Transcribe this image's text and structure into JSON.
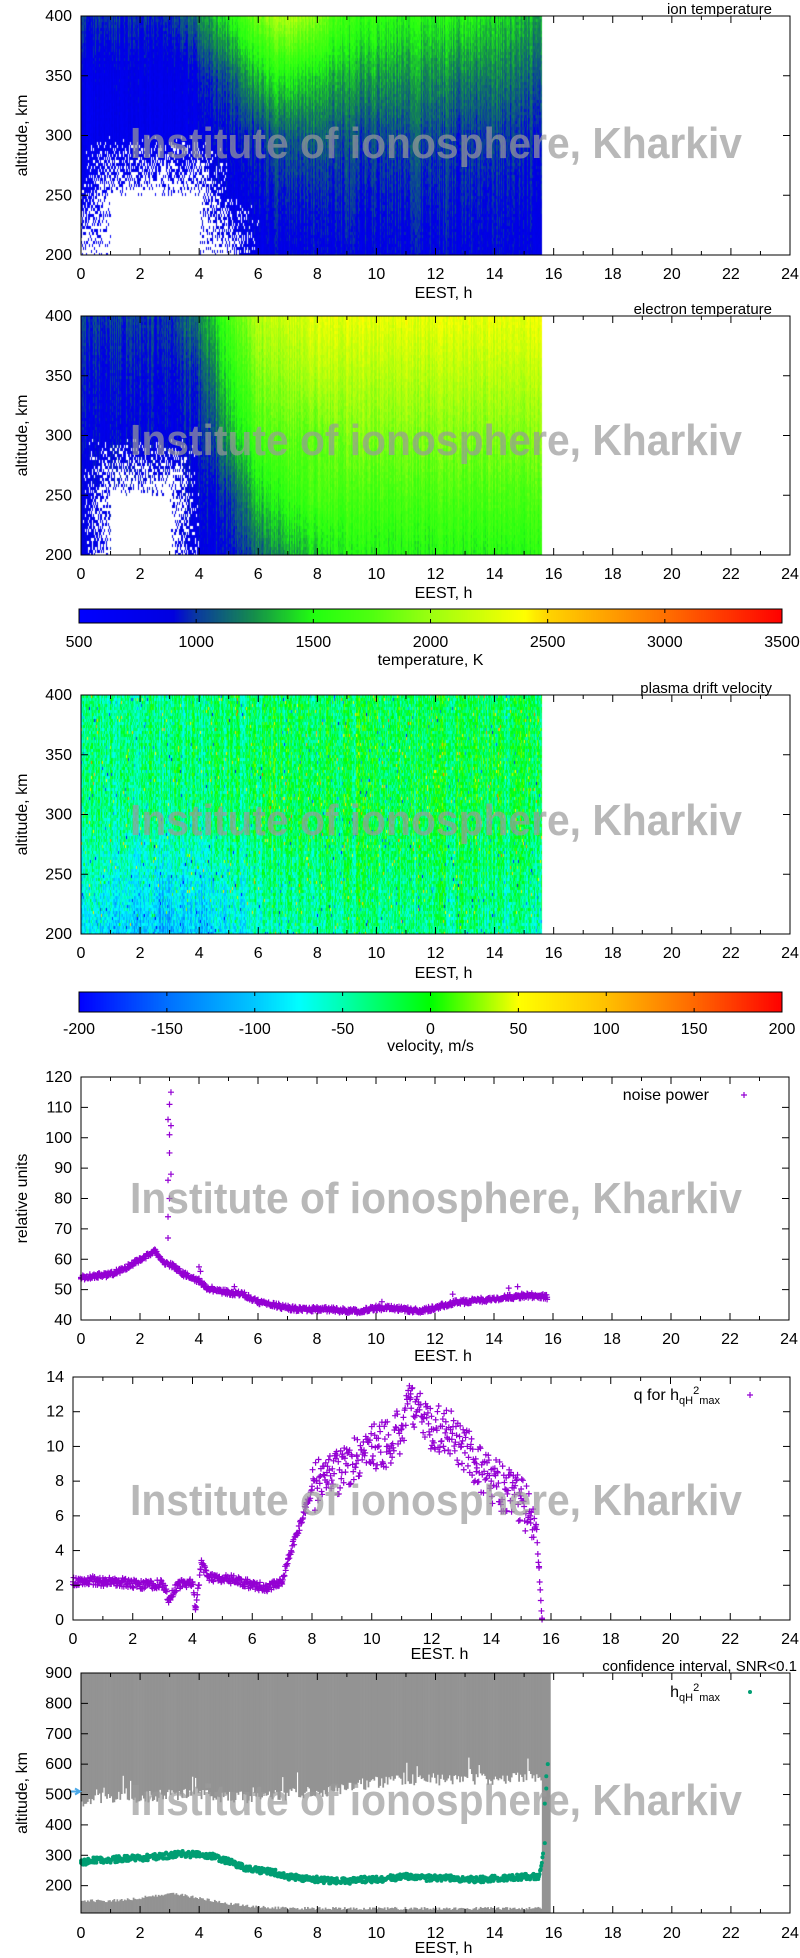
{
  "watermark": "Institute of ionosphere, Kharkiv",
  "chart_data": [
    {
      "type": "heatmap",
      "title": "ion temperature",
      "xlabel": "EEST, h",
      "ylabel": "altitude, km",
      "xlim": [
        0,
        24
      ],
      "ylim": [
        200,
        400
      ],
      "xticks": [
        "0",
        "2",
        "4",
        "6",
        "8",
        "10",
        "12",
        "14",
        "16",
        "18",
        "20",
        "22",
        "24"
      ],
      "yticks": [
        "200",
        "250",
        "300",
        "350",
        "400"
      ],
      "colorbar": 6,
      "data_end_hour": 15.6,
      "hours": [
        0,
        1,
        2,
        3,
        4,
        5,
        6,
        7,
        8,
        9,
        10,
        11,
        12,
        13,
        14,
        15.6
      ],
      "altitudes": [
        200,
        250,
        300,
        350,
        400
      ],
      "values_K": [
        [
          null,
          null,
          null,
          null,
          null,
          null,
          800,
          850,
          850,
          850,
          850,
          850,
          850,
          850,
          850,
          800
        ],
        [
          700,
          null,
          null,
          null,
          null,
          800,
          900,
          950,
          950,
          950,
          950,
          950,
          950,
          950,
          900,
          900
        ],
        [
          750,
          750,
          750,
          750,
          800,
          900,
          1000,
          1100,
          1100,
          1050,
          1050,
          1050,
          1050,
          1000,
          1000,
          950
        ],
        [
          800,
          800,
          800,
          800,
          900,
          1100,
          1400,
          1500,
          1400,
          1300,
          1300,
          1250,
          1250,
          1200,
          1200,
          1100
        ],
        [
          1000,
          1000,
          950,
          1000,
          1200,
          1500,
          1900,
          2100,
          1900,
          1600,
          1600,
          1500,
          1500,
          1500,
          1400,
          1300
        ]
      ]
    },
    {
      "type": "heatmap",
      "title": "electron temperature",
      "xlabel": "EEST, h",
      "ylabel": "altitude, km",
      "xlim": [
        0,
        24
      ],
      "ylim": [
        200,
        400
      ],
      "xticks": [
        "0",
        "2",
        "4",
        "6",
        "8",
        "10",
        "12",
        "14",
        "16",
        "18",
        "20",
        "22",
        "24"
      ],
      "yticks": [
        "200",
        "250",
        "300",
        "350",
        "400"
      ],
      "colorbar": 6,
      "data_end_hour": 15.6,
      "hours": [
        0,
        1,
        2,
        3,
        4,
        5,
        6,
        7,
        8,
        9,
        10,
        11,
        12,
        13,
        14,
        15.6
      ],
      "altitudes": [
        200,
        250,
        300,
        350,
        400
      ],
      "values_K": [
        [
          800,
          null,
          null,
          null,
          800,
          900,
          1100,
          1300,
          1400,
          1500,
          1500,
          1500,
          1500,
          1500,
          1500,
          1500
        ],
        [
          800,
          null,
          null,
          null,
          850,
          1000,
          1400,
          1600,
          1700,
          1700,
          1700,
          1700,
          1700,
          1700,
          1700,
          1700
        ],
        [
          850,
          850,
          850,
          850,
          900,
          1300,
          1700,
          1800,
          1800,
          1900,
          1900,
          1900,
          1900,
          1900,
          1900,
          1900
        ],
        [
          900,
          900,
          900,
          900,
          1000,
          1500,
          1900,
          2000,
          2100,
          2100,
          2100,
          2100,
          2100,
          2100,
          2100,
          2100
        ],
        [
          1000,
          1000,
          1000,
          1000,
          1200,
          1700,
          2100,
          2200,
          2300,
          2300,
          2300,
          2300,
          2300,
          2300,
          2300,
          2300
        ]
      ]
    },
    {
      "type": "heatmap",
      "title": "plasma drift velocity",
      "xlabel": "EEST, h",
      "ylabel": "altitude, km",
      "xlim": [
        0,
        24
      ],
      "ylim": [
        200,
        400
      ],
      "xticks": [
        "0",
        "2",
        "4",
        "6",
        "8",
        "10",
        "12",
        "14",
        "16",
        "18",
        "20",
        "22",
        "24"
      ],
      "yticks": [
        "200",
        "250",
        "300",
        "350",
        "400"
      ],
      "colorbar": 7,
      "data_end_hour": 15.6,
      "hours": [
        0,
        1,
        2,
        3,
        4,
        5,
        6,
        7,
        8,
        9,
        10,
        11,
        12,
        13,
        14,
        15.6
      ],
      "altitudes": [
        200,
        250,
        300,
        350,
        400
      ],
      "values_m_s": [
        [
          -80,
          -90,
          -100,
          -110,
          -100,
          -80,
          -60,
          -50,
          -45,
          -40,
          -40,
          -40,
          -40,
          -40,
          -45,
          -60
        ],
        [
          -60,
          -60,
          -70,
          -75,
          -70,
          -55,
          -40,
          -35,
          -30,
          -30,
          -30,
          -30,
          -30,
          -30,
          -35,
          -45
        ],
        [
          -40,
          -40,
          -40,
          -40,
          -35,
          -30,
          -25,
          -20,
          -20,
          -20,
          -20,
          -20,
          -20,
          -20,
          -25,
          -30
        ],
        [
          -35,
          -35,
          -35,
          -35,
          -30,
          -25,
          -20,
          -20,
          -20,
          -20,
          -20,
          -20,
          -20,
          -20,
          -20,
          -25
        ],
        [
          -40,
          -40,
          -40,
          -40,
          -35,
          -30,
          -30,
          -25,
          -25,
          -25,
          -25,
          -25,
          -25,
          -25,
          -30,
          -30
        ]
      ]
    },
    {
      "type": "scatter",
      "xlabel": "EEST. h",
      "ylabel": "relative units",
      "xlim": [
        0,
        24
      ],
      "ylim": [
        40,
        120
      ],
      "xticks": [
        "0",
        "2",
        "4",
        "6",
        "8",
        "10",
        "12",
        "14",
        "16",
        "18",
        "20",
        "22",
        "24"
      ],
      "yticks": [
        "40",
        "50",
        "60",
        "70",
        "80",
        "90",
        "100",
        "110",
        "120"
      ],
      "legend": "top-right",
      "color": "#9400d3",
      "series": [
        {
          "name": "noise power",
          "x": [
            0,
            0.5,
            1,
            1.5,
            2,
            2.5,
            2.8,
            3.1,
            3.5,
            4,
            4.2,
            4.5,
            5,
            5.5,
            6,
            6.5,
            7,
            7.5,
            8,
            8.5,
            9,
            9.5,
            10,
            10.5,
            11,
            11.5,
            12,
            12.5,
            13,
            13.5,
            14,
            14.5,
            15,
            15.5,
            15.8
          ],
          "y": [
            54,
            54.5,
            55,
            57,
            60,
            62.5,
            59,
            58,
            55,
            53,
            51,
            50,
            49,
            48.5,
            46,
            45,
            44,
            43.5,
            43.5,
            43.5,
            43,
            43,
            44,
            44,
            43.5,
            43,
            44,
            45.5,
            46,
            46.5,
            47,
            47.5,
            48,
            48,
            47.5
          ]
        }
      ],
      "outliers": {
        "x": [
          2.95,
          2.95,
          3.0,
          2.95,
          3.05,
          3.0,
          3.0,
          3.05,
          2.95,
          3.0,
          3.05,
          4.0,
          4.05,
          5.2,
          10.2,
          12.6,
          14.5,
          14.8
        ],
        "y": [
          67,
          74,
          80,
          86,
          88,
          95,
          101,
          104,
          106,
          111,
          115,
          57.5,
          56,
          51,
          46,
          48.5,
          50.5,
          51
        ]
      }
    },
    {
      "type": "scatter",
      "xlabel": "EEST. h",
      "ylabel": "",
      "xlim": [
        0,
        24
      ],
      "ylim": [
        0,
        14
      ],
      "xticks": [
        "0",
        "2",
        "4",
        "6",
        "8",
        "10",
        "12",
        "14",
        "16",
        "18",
        "20",
        "22",
        "24"
      ],
      "yticks": [
        "0",
        "2",
        "4",
        "6",
        "8",
        "10",
        "12",
        "14"
      ],
      "legend": "top-right",
      "color": "#9400d3",
      "series": [
        {
          "name": {
            "main": "q for h",
            "sub": "qH",
            "sup": "2",
            "sub2": "max"
          },
          "x": [
            0,
            0.5,
            1,
            1.5,
            2,
            2.5,
            3,
            3.2,
            3.5,
            4,
            4.1,
            4.3,
            4.5,
            5,
            5.5,
            6,
            6.5,
            7,
            7.2,
            7.5,
            7.8,
            8,
            8.5,
            9,
            9.5,
            10,
            10.5,
            11,
            11.3,
            11.5,
            12,
            12.5,
            13,
            13.5,
            14,
            14.5,
            15,
            15.3,
            15.5,
            15.6,
            15.7
          ],
          "y": [
            2.2,
            2.3,
            2.2,
            2.2,
            2.1,
            2.0,
            2.1,
            1.2,
            2.0,
            2.2,
            0.7,
            3.3,
            2.5,
            2.4,
            2.3,
            2.0,
            1.9,
            2.2,
            3.5,
            5.0,
            6.5,
            7.5,
            8.5,
            8.5,
            9.5,
            10,
            10,
            11,
            12.8,
            12,
            11,
            11,
            10,
            9,
            8,
            7.5,
            7,
            6,
            5.5,
            3,
            0.1
          ]
        }
      ]
    },
    {
      "type": "scatter",
      "title": "confidence interval, SNR<0.1",
      "xlabel": "EEST, h",
      "ylabel": "altitude, km",
      "xlim": [
        0,
        24
      ],
      "ylim": [
        110,
        900
      ],
      "xticks": [
        "0",
        "2",
        "4",
        "6",
        "8",
        "10",
        "12",
        "14",
        "16",
        "18",
        "20",
        "22",
        "24"
      ],
      "yticks": [
        "200",
        "300",
        "400",
        "500",
        "600",
        "700",
        "800",
        "900"
      ],
      "legend": "top-right",
      "color": "#009e73",
      "confidence_color": "#939393",
      "left_marker_altitude": 510,
      "left_marker_color": "#4aa8e8",
      "confidence_interval": {
        "hours": [
          0,
          1,
          2,
          3,
          4,
          5,
          6,
          7,
          8,
          9,
          10,
          11,
          12,
          13,
          14,
          15,
          15.6
        ],
        "upper_km": [
          480,
          490,
          490,
          500,
          500,
          490,
          490,
          500,
          510,
          520,
          540,
          550,
          550,
          550,
          550,
          560,
          560
        ],
        "lower_km": [
          150,
          150,
          160,
          175,
          160,
          140,
          130,
          125,
          125,
          125,
          125,
          125,
          125,
          125,
          125,
          125,
          125
        ]
      },
      "series": [
        {
          "name": {
            "main": "h",
            "sub": "qH",
            "sup": "2",
            "sub2": "max"
          },
          "x": [
            0,
            0.5,
            1,
            1.5,
            2,
            2.5,
            3,
            3.5,
            4,
            4.5,
            5,
            5.5,
            6,
            6.5,
            7,
            7.5,
            8,
            8.5,
            9,
            9.5,
            10,
            10.5,
            11,
            11.5,
            12,
            12.5,
            13,
            13.5,
            14,
            14.5,
            15,
            15.5,
            15.7,
            15.7,
            15.75,
            15.75,
            15.8
          ],
          "y": [
            275,
            285,
            285,
            290,
            290,
            295,
            300,
            305,
            300,
            295,
            280,
            260,
            250,
            245,
            230,
            225,
            220,
            215,
            215,
            220,
            220,
            225,
            230,
            225,
            225,
            225,
            220,
            220,
            225,
            225,
            230,
            230,
            340,
            470,
            520,
            560,
            600
          ]
        }
      ]
    },
    {
      "type": "colorbar",
      "label": "temperature, K",
      "range": [
        500,
        3500
      ],
      "ticks": [
        "500",
        "1000",
        "1500",
        "2000",
        "2500",
        "3000",
        "3500"
      ],
      "colors": [
        [
          500,
          "#0000ff"
        ],
        [
          900,
          "#0000e0"
        ],
        [
          1000,
          "#0a3aa0"
        ],
        [
          1250,
          "#15904a"
        ],
        [
          1500,
          "#22ff10"
        ],
        [
          1750,
          "#50ff10"
        ],
        [
          2000,
          "#9cff10"
        ],
        [
          2400,
          "#ffff00"
        ],
        [
          2500,
          "#ffd400"
        ],
        [
          3000,
          "#ff7000"
        ],
        [
          3500,
          "#ff0000"
        ]
      ]
    },
    {
      "type": "colorbar",
      "label": "velocity, m/s",
      "range": [
        -200,
        200
      ],
      "ticks": [
        "-200",
        "-150",
        "-100",
        "-50",
        "0",
        "50",
        "100",
        "150",
        "200"
      ],
      "colors": [
        [
          -200,
          "#0000ff"
        ],
        [
          -150,
          "#0070ff"
        ],
        [
          -100,
          "#00c8ff"
        ],
        [
          -75,
          "#00ffff"
        ],
        [
          -50,
          "#00ffb0"
        ],
        [
          0,
          "#00ff00"
        ],
        [
          50,
          "#ffff00"
        ],
        [
          100,
          "#ffc000"
        ],
        [
          150,
          "#ff6800"
        ],
        [
          200,
          "#ff0000"
        ]
      ]
    }
  ]
}
